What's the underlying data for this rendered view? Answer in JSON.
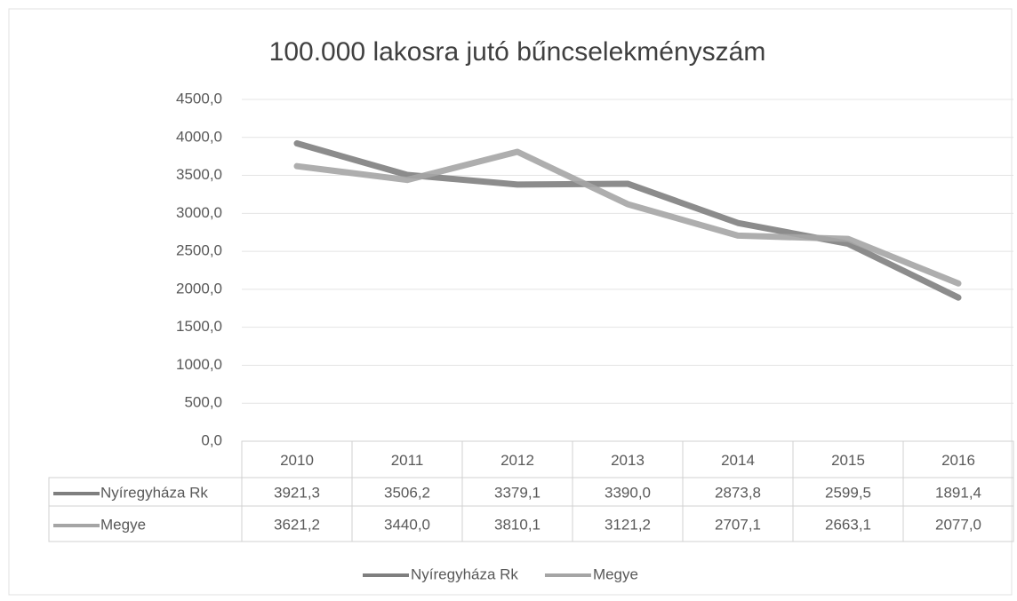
{
  "chart_data": {
    "type": "line",
    "title": "100.000 lakosra jutó bűncselekményszám",
    "categories": [
      "2010",
      "2011",
      "2012",
      "2013",
      "2014",
      "2015",
      "2016"
    ],
    "series": [
      {
        "name": "Nyíregyháza Rk",
        "color": "#7f7f7f",
        "values": [
          3921.3,
          3506.2,
          3379.1,
          3390.0,
          2873.8,
          2599.5,
          1891.4
        ],
        "value_labels": [
          "3921,3",
          "3506,2",
          "3379,1",
          "3390,0",
          "2873,8",
          "2599,5",
          "1891,4"
        ]
      },
      {
        "name": "Megye",
        "color": "#a5a5a5",
        "values": [
          3621.2,
          3440.0,
          3810.1,
          3121.2,
          2707.1,
          2663.1,
          2077.0
        ],
        "value_labels": [
          "3621,2",
          "3440,0",
          "3810,1",
          "3121,2",
          "2707,1",
          "2663,1",
          "2077,0"
        ]
      }
    ],
    "ylim": [
      0,
      4500
    ],
    "yticks": [
      {
        "value": 0,
        "label": "0,0"
      },
      {
        "value": 500,
        "label": "500,0"
      },
      {
        "value": 1000,
        "label": "1000,0"
      },
      {
        "value": 1500,
        "label": "1500,0"
      },
      {
        "value": 2000,
        "label": "2000,0"
      },
      {
        "value": 2500,
        "label": "2500,0"
      },
      {
        "value": 3000,
        "label": "3000,0"
      },
      {
        "value": 3500,
        "label": "3500,0"
      },
      {
        "value": 4000,
        "label": "4000,0"
      },
      {
        "value": 4500,
        "label": "4500,0"
      }
    ],
    "grid": true,
    "legend": "bottom"
  }
}
